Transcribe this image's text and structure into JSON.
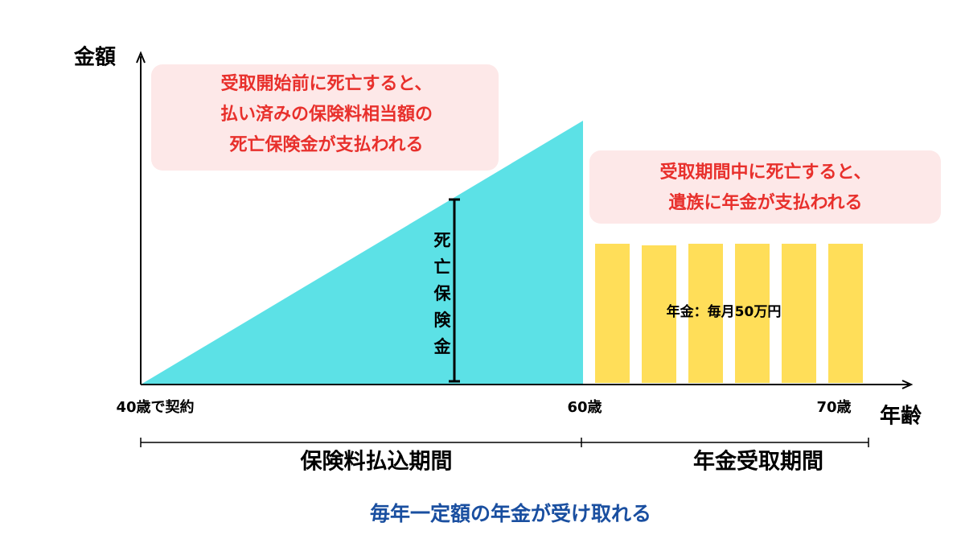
{
  "axes": {
    "y_label": "金額",
    "x_label": "年齢",
    "x_ticks": [
      "40歳で契約",
      "60歳",
      "70歳"
    ]
  },
  "callouts": [
    {
      "lines": [
        "受取開始前に死亡すると、",
        "払い済みの保険料相当額の",
        "死亡保険金が支払われる"
      ]
    },
    {
      "lines": [
        "受取期間中に死亡すると、",
        "遺族に年金が支払われる"
      ]
    }
  ],
  "death_benefit_label": "死亡保険金",
  "pension_label": "年金：毎月50万円",
  "periods": [
    "保険料払込期間",
    "年金受取期間"
  ],
  "caption": "毎年一定額の年金が受け取れる"
}
